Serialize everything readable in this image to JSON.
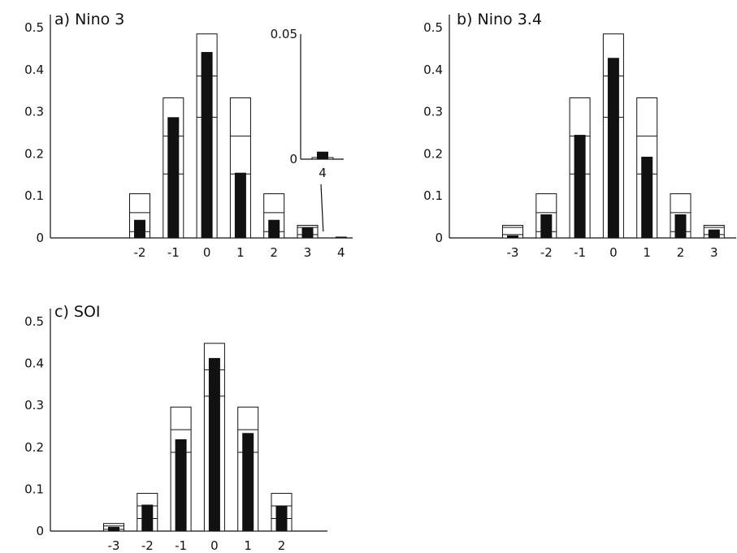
{
  "chart_data": [
    {
      "type": "bar",
      "title": "a)  Nino 3",
      "categories": [
        "-2",
        "-1",
        "0",
        "1",
        "2",
        "3",
        "4"
      ],
      "series": [
        {
          "role": "outline",
          "values": [
            0.105,
            0.333,
            0.485,
            0.333,
            0.105,
            0.03,
            0.0
          ]
        },
        {
          "role": "level_upper",
          "values": [
            0.06,
            0.242,
            0.385,
            0.242,
            0.06,
            0.025,
            0.0
          ]
        },
        {
          "role": "level_lower",
          "values": [
            0.015,
            0.152,
            0.287,
            0.152,
            0.015,
            0.008,
            0.0
          ]
        },
        {
          "role": "filled",
          "values": [
            0.043,
            0.287,
            0.442,
            0.155,
            0.043,
            0.024,
            0.003
          ]
        }
      ],
      "ylim": [
        0,
        0.5
      ],
      "yticks": [
        "0",
        "0.1",
        "0.2",
        "0.3",
        "0.4",
        "0.5"
      ],
      "inset": {
        "category": "4",
        "ylim": [
          0,
          0.05
        ],
        "yticks": [
          "0",
          "0.05"
        ],
        "filled": 0.003,
        "outline": 0.0002
      }
    },
    {
      "type": "bar",
      "title": "b)  Nino 3.4",
      "categories": [
        "-3",
        "-2",
        "-1",
        "0",
        "1",
        "2",
        "3"
      ],
      "series": [
        {
          "role": "outline",
          "values": [
            0.03,
            0.105,
            0.333,
            0.485,
            0.333,
            0.105,
            0.03
          ]
        },
        {
          "role": "level_upper",
          "values": [
            0.025,
            0.06,
            0.242,
            0.385,
            0.242,
            0.06,
            0.025
          ]
        },
        {
          "role": "level_lower",
          "values": [
            0.008,
            0.015,
            0.152,
            0.287,
            0.152,
            0.015,
            0.008
          ]
        },
        {
          "role": "filled",
          "values": [
            0.006,
            0.056,
            0.245,
            0.428,
            0.193,
            0.056,
            0.02
          ]
        }
      ],
      "ylim": [
        0,
        0.5
      ],
      "yticks": [
        "0",
        "0.1",
        "0.2",
        "0.3",
        "0.4",
        "0.5"
      ]
    },
    {
      "type": "bar",
      "title": "c)  SOI",
      "categories": [
        "-3",
        "-2",
        "-1",
        "0",
        "1",
        "2"
      ],
      "series": [
        {
          "role": "outline",
          "values": [
            0.018,
            0.09,
            0.296,
            0.448,
            0.296,
            0.09
          ]
        },
        {
          "role": "level_upper",
          "values": [
            0.012,
            0.06,
            0.242,
            0.385,
            0.242,
            0.06
          ]
        },
        {
          "role": "level_lower",
          "values": [
            0.004,
            0.03,
            0.188,
            0.322,
            0.188,
            0.03
          ]
        },
        {
          "role": "filled",
          "values": [
            0.01,
            0.063,
            0.219,
            0.413,
            0.234,
            0.06
          ]
        }
      ],
      "ylim": [
        0,
        0.5
      ],
      "yticks": [
        "0",
        "0.1",
        "0.2",
        "0.3",
        "0.4",
        "0.5"
      ]
    }
  ]
}
